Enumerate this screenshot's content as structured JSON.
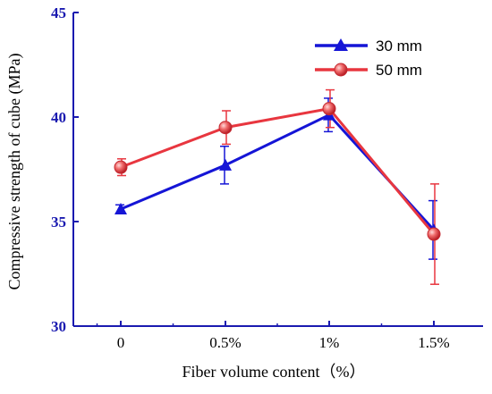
{
  "chart_data": {
    "type": "line",
    "xlabel": "Fiber volume content（%）",
    "ylabel": "Compressive strength of cube (MPa)",
    "categories": [
      "0",
      "0.5%",
      "1%",
      "1.5%"
    ],
    "ylim": [
      30,
      45
    ],
    "yticks": [
      "30",
      "35",
      "40",
      "45"
    ],
    "grid": false,
    "legend_position": "top-right",
    "series": [
      {
        "name": "30 mm",
        "color": "#1515d6",
        "marker": "triangle",
        "values": [
          35.6,
          37.7,
          40.1,
          34.6
        ],
        "errors": [
          0.2,
          0.9,
          0.8,
          1.4
        ]
      },
      {
        "name": "50 mm",
        "color": "#e8363f",
        "marker": "circle",
        "values": [
          37.6,
          39.5,
          40.4,
          34.4
        ],
        "errors": [
          0.4,
          0.8,
          0.9,
          2.4
        ]
      }
    ]
  }
}
